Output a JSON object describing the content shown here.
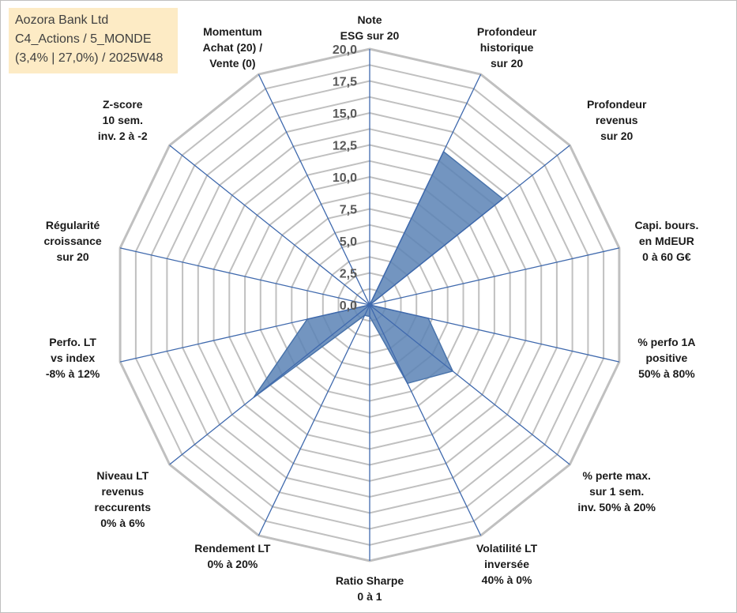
{
  "info": {
    "company": "Aozora Bank Ltd",
    "portfolio": "C4_Actions / 5_MONDE",
    "stats": "(3,4% | 27,0%) / 2025W48"
  },
  "chart_data": {
    "type": "radar",
    "title": "",
    "rmax": 20,
    "ticks": [
      "0,0",
      "2,5",
      "5,0",
      "7,5",
      "10,0",
      "12,5",
      "15,0",
      "17,5",
      "20,0"
    ],
    "tick_values": [
      0,
      2.5,
      5,
      7.5,
      10,
      12.5,
      15,
      17.5,
      20
    ],
    "grid": true,
    "axes": [
      [
        "Note",
        "ESG sur 20"
      ],
      [
        "Profondeur",
        "historique",
        "sur 20"
      ],
      [
        "Profondeur",
        "revenus",
        "sur 20"
      ],
      [
        "Capi. bours.",
        "en MdEUR",
        "0 à 60 G€"
      ],
      [
        "% perfo 1A",
        "positive",
        "50% à 80%"
      ],
      [
        "% perte max.",
        "sur 1 sem.",
        "inv. 50% à 20%"
      ],
      [
        "Volatilité LT",
        "inversée",
        "40% à 0%"
      ],
      [
        "Ratio Sharpe",
        "0 à 1"
      ],
      [
        "Rendement LT",
        "0% à 20%"
      ],
      [
        "Niveau LT",
        "revenus",
        "reccurents",
        "0% à 6%"
      ],
      [
        "Perfo. LT",
        "vs index",
        "-8% à 12%"
      ],
      [
        "Régularité",
        "croissance",
        "sur 20"
      ],
      [
        "Z-score",
        "10 sem.",
        "inv. 2 à -2"
      ],
      [
        "Momentum",
        "Achat (20) /",
        "Vente (0)"
      ]
    ],
    "series": [
      {
        "values": [
          0,
          13.3,
          13.3,
          0,
          4.7,
          8.3,
          6.8,
          0.9,
          0.9,
          11.6,
          5.0,
          0,
          0,
          0
        ]
      }
    ],
    "colors": {
      "fill": "#5b82b5",
      "stroke": "#4a74ab",
      "grid": "#c0c0c0",
      "spoke": "#3f69ad"
    }
  }
}
